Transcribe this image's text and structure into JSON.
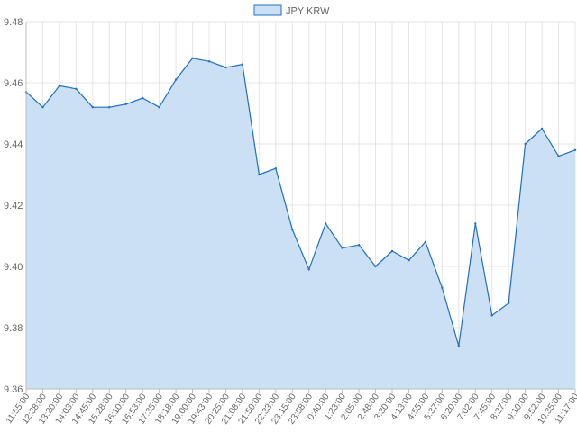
{
  "chart_data": {
    "type": "area",
    "title": "",
    "xlabel": "",
    "ylabel": "",
    "legend": {
      "position": "top-center"
    },
    "grid": true,
    "ylim": [
      9.36,
      9.48
    ],
    "yticks": [
      "9.48",
      "9.46",
      "9.44",
      "9.42",
      "9.40",
      "9.38",
      "9.36"
    ],
    "x": [
      "11:55:00",
      "12:38:00",
      "13:20:00",
      "14:03:00",
      "14:45:00",
      "15:28:00",
      "16:10:00",
      "16:53:00",
      "17:35:00",
      "18:18:00",
      "19:00:00",
      "19:43:00",
      "20:25:00",
      "21:08:00",
      "21:50:00",
      "22:33:00",
      "23:15:00",
      "23:58:00",
      "0:40:00",
      "1:23:00",
      "2:05:00",
      "2:48:00",
      "3:30:00",
      "4:13:00",
      "4:55:00",
      "5:37:00",
      "6:20:00",
      "7:02:00",
      "7:45:00",
      "8:27:00",
      "9:10:00",
      "9:52:00",
      "10:35:00",
      "11:17:00"
    ],
    "series": [
      {
        "name": "JPY KRW",
        "color": "#1f6fc5",
        "fill": "#cce0f5",
        "values": [
          9.457,
          9.452,
          9.459,
          9.458,
          9.452,
          9.452,
          9.453,
          9.455,
          9.452,
          9.461,
          9.468,
          9.467,
          9.465,
          9.466,
          9.43,
          9.432,
          9.412,
          9.399,
          9.414,
          9.406,
          9.407,
          9.4,
          9.405,
          9.402,
          9.408,
          9.393,
          9.374,
          9.414,
          9.384,
          9.388,
          9.44,
          9.445,
          9.436,
          9.438
        ]
      }
    ]
  }
}
